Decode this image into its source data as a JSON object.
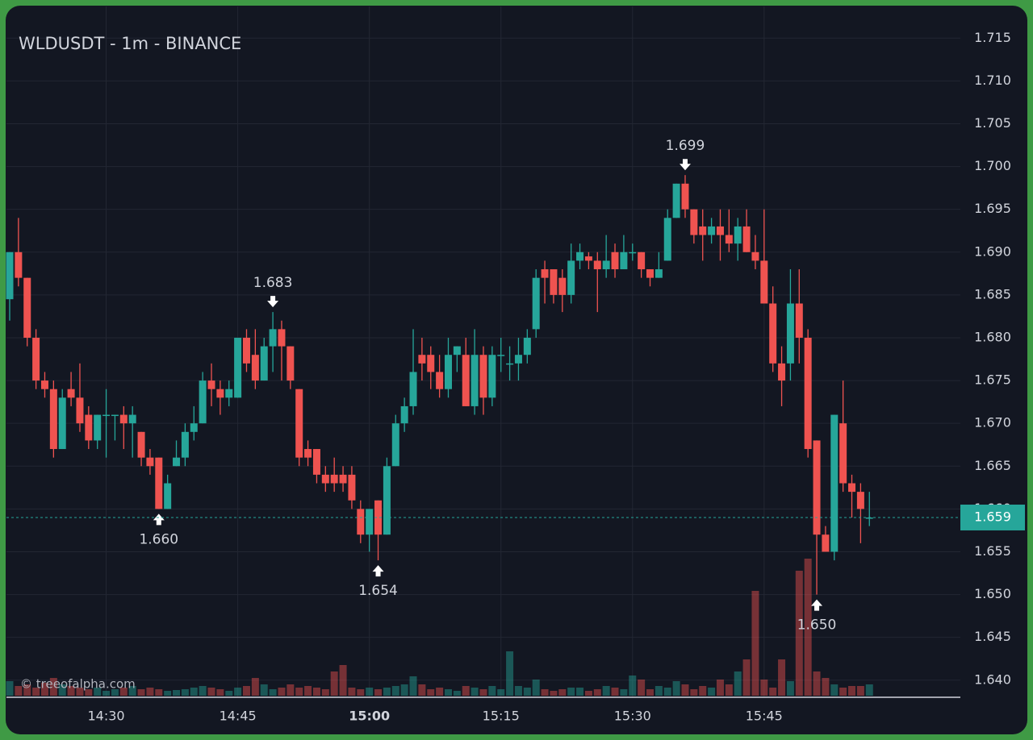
{
  "chart_data": {
    "type": "candlestick",
    "title": "WLDUSDT - 1m - BINANCE",
    "watermark": "© treeofalpha.com",
    "categories": [
      null,
      null,
      null,
      null,
      null,
      null,
      null,
      null,
      null,
      null,
      null,
      "14:30",
      null,
      null,
      null,
      null,
      null,
      null,
      null,
      null,
      null,
      null,
      null,
      null,
      null,
      null,
      "14:45",
      null,
      null,
      null,
      null,
      null,
      null,
      null,
      null,
      null,
      null,
      null,
      null,
      null,
      null,
      "15:00",
      null,
      null,
      null,
      null,
      null,
      null,
      null,
      null,
      null,
      null,
      null,
      null,
      null,
      null,
      "15:15",
      null,
      null,
      null,
      null,
      null,
      null,
      null,
      null,
      null,
      null,
      null,
      null,
      null,
      null,
      "15:30",
      null,
      null,
      null,
      null,
      null,
      null,
      null,
      null,
      null,
      null,
      null,
      null,
      null,
      null,
      "15:45",
      null,
      null,
      null,
      null,
      null,
      null,
      null,
      null,
      null,
      null,
      null,
      null
    ],
    "open": [
      1.6845,
      1.69,
      1.687,
      1.68,
      1.675,
      1.674,
      1.667,
      1.674,
      1.673,
      1.671,
      1.668,
      1.671,
      1.671,
      1.671,
      1.67,
      1.669,
      1.666,
      1.666,
      1.66,
      1.665,
      1.666,
      1.669,
      1.67,
      1.675,
      1.674,
      1.673,
      1.673,
      1.68,
      1.678,
      1.675,
      1.679,
      1.681,
      1.679,
      1.674,
      1.667,
      1.667,
      1.664,
      1.664,
      1.664,
      1.664,
      1.66,
      1.657,
      1.661,
      1.657,
      1.665,
      1.67,
      1.672,
      1.678,
      1.678,
      1.676,
      1.674,
      1.678,
      1.678,
      1.672,
      1.678,
      1.673,
      1.678,
      1.677,
      1.677,
      1.678,
      1.681,
      1.688,
      1.688,
      1.687,
      1.685,
      1.689,
      1.6895,
      1.689,
      1.688,
      1.69,
      1.688,
      1.69,
      1.69,
      1.688,
      1.687,
      1.689,
      1.694,
      1.698,
      1.695,
      1.693,
      1.692,
      1.693,
      1.692,
      1.691,
      1.693,
      1.69,
      1.689,
      1.684,
      1.677,
      1.677,
      1.684,
      1.68,
      1.668,
      1.657,
      1.655,
      1.67,
      1.663,
      1.662,
      1.659
    ],
    "high": [
      1.69,
      1.694,
      1.687,
      1.681,
      1.676,
      1.675,
      1.674,
      1.676,
      1.677,
      1.672,
      1.671,
      1.674,
      1.671,
      1.672,
      1.672,
      1.669,
      1.667,
      1.666,
      1.664,
      1.668,
      1.67,
      1.672,
      1.676,
      1.677,
      1.675,
      1.675,
      1.68,
      1.681,
      1.681,
      1.68,
      1.683,
      1.682,
      1.679,
      1.674,
      1.668,
      1.667,
      1.665,
      1.666,
      1.665,
      1.665,
      1.661,
      1.66,
      1.661,
      1.666,
      1.671,
      1.673,
      1.681,
      1.68,
      1.679,
      1.678,
      1.68,
      1.679,
      1.68,
      1.681,
      1.679,
      1.679,
      1.68,
      1.679,
      1.68,
      1.681,
      1.688,
      1.689,
      1.688,
      1.688,
      1.691,
      1.691,
      1.69,
      1.69,
      1.692,
      1.691,
      1.692,
      1.691,
      1.69,
      1.688,
      1.69,
      1.695,
      1.698,
      1.699,
      1.695,
      1.695,
      1.694,
      1.695,
      1.695,
      1.694,
      1.695,
      1.692,
      1.695,
      1.686,
      1.679,
      1.688,
      1.688,
      1.681,
      1.668,
      1.658,
      1.671,
      1.675,
      1.664,
      1.663,
      1.662
    ],
    "low": [
      1.682,
      1.686,
      1.679,
      1.674,
      1.673,
      1.666,
      1.667,
      1.672,
      1.669,
      1.667,
      1.667,
      1.666,
      1.668,
      1.667,
      1.666,
      1.665,
      1.664,
      1.66,
      1.66,
      1.665,
      1.665,
      1.668,
      1.67,
      1.672,
      1.671,
      1.672,
      1.673,
      1.676,
      1.674,
      1.675,
      1.676,
      1.675,
      1.674,
      1.665,
      1.665,
      1.663,
      1.662,
      1.662,
      1.662,
      1.66,
      1.656,
      1.655,
      1.654,
      1.657,
      1.665,
      1.669,
      1.671,
      1.675,
      1.674,
      1.673,
      1.673,
      1.676,
      1.672,
      1.671,
      1.671,
      1.672,
      1.676,
      1.675,
      1.675,
      1.677,
      1.68,
      1.684,
      1.684,
      1.683,
      1.684,
      1.688,
      1.688,
      1.683,
      1.687,
      1.687,
      1.688,
      1.689,
      1.687,
      1.686,
      1.687,
      1.689,
      1.694,
      1.694,
      1.691,
      1.689,
      1.691,
      1.689,
      1.69,
      1.689,
      1.69,
      1.688,
      1.684,
      1.676,
      1.672,
      1.675,
      1.677,
      1.666,
      1.65,
      1.655,
      1.654,
      1.662,
      1.659,
      1.656,
      1.658
    ],
    "close": [
      1.69,
      1.687,
      1.68,
      1.675,
      1.674,
      1.667,
      1.673,
      1.673,
      1.67,
      1.668,
      1.671,
      1.671,
      1.671,
      1.67,
      1.671,
      1.666,
      1.665,
      1.66,
      1.663,
      1.666,
      1.669,
      1.67,
      1.675,
      1.674,
      1.673,
      1.674,
      1.68,
      1.677,
      1.675,
      1.679,
      1.681,
      1.679,
      1.675,
      1.666,
      1.666,
      1.664,
      1.663,
      1.663,
      1.663,
      1.661,
      1.657,
      1.66,
      1.657,
      1.665,
      1.67,
      1.672,
      1.676,
      1.677,
      1.676,
      1.674,
      1.678,
      1.679,
      1.672,
      1.678,
      1.673,
      1.678,
      1.678,
      1.677,
      1.678,
      1.68,
      1.687,
      1.687,
      1.685,
      1.685,
      1.689,
      1.69,
      1.689,
      1.688,
      1.689,
      1.688,
      1.69,
      1.69,
      1.688,
      1.687,
      1.688,
      1.694,
      1.698,
      1.695,
      1.692,
      1.692,
      1.693,
      1.692,
      1.691,
      1.693,
      1.69,
      1.689,
      1.684,
      1.677,
      1.675,
      1.684,
      1.68,
      1.667,
      1.657,
      1.655,
      1.671,
      1.663,
      1.662,
      1.66,
      1.659
    ],
    "volume": [
      18,
      12,
      14,
      10,
      16,
      22,
      14,
      12,
      10,
      8,
      10,
      6,
      8,
      10,
      12,
      8,
      10,
      8,
      6,
      7,
      8,
      10,
      12,
      10,
      8,
      6,
      10,
      12,
      22,
      14,
      8,
      10,
      14,
      10,
      12,
      10,
      8,
      30,
      38,
      10,
      8,
      10,
      8,
      10,
      12,
      14,
      24,
      14,
      8,
      10,
      8,
      6,
      12,
      10,
      8,
      12,
      8,
      55,
      12,
      10,
      20,
      8,
      6,
      8,
      10,
      10,
      6,
      8,
      12,
      10,
      8,
      25,
      20,
      8,
      12,
      10,
      18,
      14,
      8,
      12,
      10,
      20,
      14,
      30,
      45,
      130,
      20,
      10,
      45,
      18,
      155,
      170,
      30,
      22,
      14,
      10,
      12,
      12,
      14
    ],
    "up_color": "#26a69a",
    "down_color": "#ef5350",
    "ylim": [
      1.638,
      1.7187
    ],
    "yticks": [
      {
        "value": 1.64,
        "label": "1.640"
      },
      {
        "value": 1.645,
        "label": "1.645"
      },
      {
        "value": 1.65,
        "label": "1.650"
      },
      {
        "value": 1.655,
        "label": "1.655"
      },
      {
        "value": 1.66,
        "label": "1.660"
      },
      {
        "value": 1.665,
        "label": "1.665"
      },
      {
        "value": 1.67,
        "label": "1.670"
      },
      {
        "value": 1.675,
        "label": "1.675"
      },
      {
        "value": 1.68,
        "label": "1.680"
      },
      {
        "value": 1.685,
        "label": "1.685"
      },
      {
        "value": 1.69,
        "label": "1.690"
      },
      {
        "value": 1.695,
        "label": "1.695"
      },
      {
        "value": 1.7,
        "label": "1.700"
      },
      {
        "value": 1.705,
        "label": "1.705"
      },
      {
        "value": 1.71,
        "label": "1.710"
      },
      {
        "value": 1.715,
        "label": "1.715"
      }
    ],
    "grid": true,
    "last_price": {
      "value": 1.659,
      "label": "1.659"
    },
    "annotations": {
      "highs": [
        {
          "value": 1.683,
          "label": "1.683"
        },
        {
          "value": 1.699,
          "label": "1.699"
        }
      ],
      "lows": [
        {
          "value": 1.66,
          "label": "1.660"
        },
        {
          "value": 1.654,
          "label": "1.654"
        },
        {
          "value": 1.65,
          "label": "1.650"
        }
      ]
    }
  }
}
